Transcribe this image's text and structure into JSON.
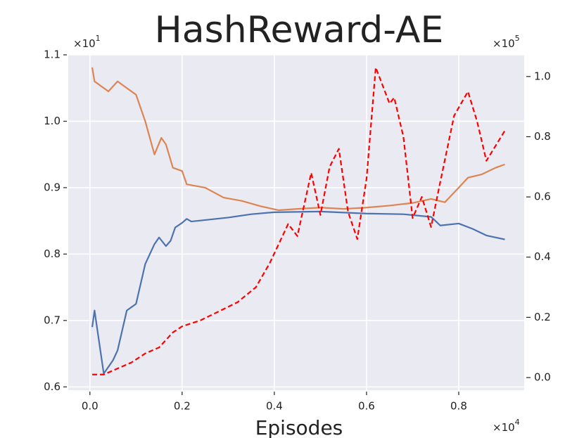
{
  "chart_data": {
    "type": "line",
    "title": "HashReward-AE",
    "x_label": "Episodes",
    "y_multiplier": {
      "base": "×10",
      "exp": "1"
    },
    "y2_multiplier": {
      "base": "×10",
      "exp": "5"
    },
    "x_multiplier": {
      "base": "×10",
      "exp": "4"
    },
    "xlim": [
      -0.047,
      0.942
    ],
    "ylim": [
      0.595,
      1.1
    ],
    "y2lim": [
      -0.042,
      1.072
    ],
    "xticks": [
      {
        "value": 0,
        "label": "0.0"
      },
      0.2,
      0.4,
      0.6,
      0.8
    ],
    "yticks": [
      0.6,
      0.7,
      0.8,
      0.9,
      {
        "value": 1,
        "label": "1.0"
      },
      1.1
    ],
    "y2ticks": [
      {
        "value": 0,
        "label": "0.0"
      },
      0.2,
      0.4,
      0.6,
      0.8,
      {
        "value": 1,
        "label": "1.0"
      }
    ],
    "grid": true,
    "series": [
      {
        "color": "#4c72b0",
        "axis": "y",
        "linestyle": "solid",
        "x": [
          0.005,
          0.01,
          0.03,
          0.05,
          0.06,
          0.08,
          0.1,
          0.12,
          0.14,
          0.15,
          0.165,
          0.175,
          0.185,
          0.2,
          0.21,
          0.22,
          0.3,
          0.35,
          0.4,
          0.5,
          0.6,
          0.68,
          0.74,
          0.76,
          0.8,
          0.83,
          0.86,
          0.9
        ],
        "values": [
          0.69,
          0.715,
          0.62,
          0.64,
          0.655,
          0.715,
          0.725,
          0.785,
          0.815,
          0.825,
          0.812,
          0.82,
          0.84,
          0.847,
          0.853,
          0.849,
          0.855,
          0.86,
          0.863,
          0.864,
          0.861,
          0.86,
          0.856,
          0.843,
          0.846,
          0.838,
          0.828,
          0.822
        ]
      },
      {
        "color": "#dd8452",
        "axis": "y",
        "linestyle": "solid",
        "x": [
          0.005,
          0.01,
          0.04,
          0.06,
          0.08,
          0.1,
          0.12,
          0.14,
          0.155,
          0.165,
          0.18,
          0.2,
          0.21,
          0.25,
          0.29,
          0.33,
          0.37,
          0.41,
          0.45,
          0.5,
          0.55,
          0.6,
          0.65,
          0.7,
          0.74,
          0.77,
          0.8,
          0.82,
          0.85,
          0.88,
          0.9
        ],
        "values": [
          1.081,
          1.06,
          1.045,
          1.06,
          1.05,
          1.04,
          1.0,
          0.95,
          0.975,
          0.965,
          0.93,
          0.925,
          0.905,
          0.9,
          0.885,
          0.88,
          0.872,
          0.866,
          0.868,
          0.87,
          0.868,
          0.87,
          0.873,
          0.877,
          0.883,
          0.878,
          0.9,
          0.915,
          0.92,
          0.93,
          0.935
        ]
      },
      {
        "color": "#ff0000",
        "axis": "y2",
        "linestyle": "dashed",
        "x": [
          0.005,
          0.03,
          0.06,
          0.09,
          0.12,
          0.15,
          0.18,
          0.2,
          0.24,
          0.28,
          0.32,
          0.36,
          0.39,
          0.43,
          0.45,
          0.48,
          0.5,
          0.52,
          0.54,
          0.56,
          0.58,
          0.6,
          0.62,
          0.65,
          0.66,
          0.68,
          0.7,
          0.72,
          0.74,
          0.76,
          0.79,
          0.82,
          0.84,
          0.86,
          0.88,
          0.9
        ],
        "values": [
          0.01,
          0.01,
          0.03,
          0.05,
          0.08,
          0.1,
          0.15,
          0.17,
          0.19,
          0.22,
          0.25,
          0.3,
          0.38,
          0.51,
          0.47,
          0.68,
          0.54,
          0.7,
          0.76,
          0.55,
          0.46,
          0.66,
          1.03,
          0.91,
          0.93,
          0.8,
          0.53,
          0.6,
          0.5,
          0.65,
          0.87,
          0.95,
          0.85,
          0.72,
          0.77,
          0.82
        ]
      }
    ]
  }
}
